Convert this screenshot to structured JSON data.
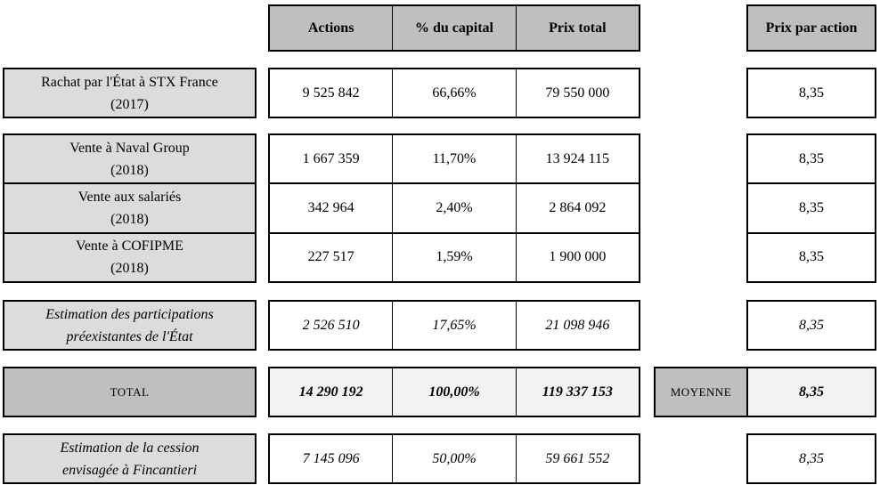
{
  "columns": {
    "actions": "Actions",
    "capital": "% du capital",
    "prix_total": "Prix total",
    "prix_par_action": "Prix par action"
  },
  "rows": [
    {
      "label1": "Rachat par l'État à STX France",
      "label2": "(2017)",
      "actions": "9 525 842",
      "capital": "66,66%",
      "prix_total": "79 550 000",
      "prix_par_action": "8,35"
    },
    {
      "label1": "Vente à Naval Group",
      "label2": "(2018)",
      "actions": "1 667 359",
      "capital": "11,70%",
      "prix_total": "13 924 115",
      "prix_par_action": "8,35"
    },
    {
      "label1": "Vente aux salariés",
      "label2": "(2018)",
      "actions": "342 964",
      "capital": "2,40%",
      "prix_total": "2 864 092",
      "prix_par_action": "8,35"
    },
    {
      "label1": "Vente à COFIPME",
      "label2": "(2018)",
      "actions": "227 517",
      "capital": "1,59%",
      "prix_total": "1 900 000",
      "prix_par_action": "8,35"
    },
    {
      "label1": "Estimation des participations",
      "label2": "préexistantes de l'État",
      "actions": "2 526 510",
      "capital": "17,65%",
      "prix_total": "21 098 946",
      "prix_par_action": "8,35"
    },
    {
      "label1": "Estimation de la cession",
      "label2": "envisagée à Fincantieri",
      "actions": "7 145 096",
      "capital": "50,00%",
      "prix_total": "59 661 552",
      "prix_par_action": "8,35"
    }
  ],
  "total": {
    "label": "TOTAL",
    "actions": "14 290 192",
    "capital": "100,00%",
    "prix_total": "119 337 153",
    "moyenne_label": "MOYENNE",
    "prix_par_action": "8,35"
  },
  "colors": {
    "header_bg": "#bfbfbf",
    "label_bg": "#dcdcdc",
    "total_row_bg": "#f2f2f2",
    "border": "#000000"
  },
  "chart_data": {
    "type": "table",
    "columns": [
      "",
      "Actions",
      "% du capital",
      "Prix total",
      "Prix par action"
    ],
    "rows": [
      [
        "Rachat par l'État à STX France (2017)",
        "9 525 842",
        "66,66%",
        "79 550 000",
        "8,35"
      ],
      [
        "Vente à Naval Group (2018)",
        "1 667 359",
        "11,70%",
        "13 924 115",
        "8,35"
      ],
      [
        "Vente aux salariés (2018)",
        "342 964",
        "2,40%",
        "2 864 092",
        "8,35"
      ],
      [
        "Vente à COFIPME (2018)",
        "227 517",
        "1,59%",
        "1 900 000",
        "8,35"
      ],
      [
        "Estimation des participations préexistantes de l'État",
        "2 526 510",
        "17,65%",
        "21 098 946",
        "8,35"
      ],
      [
        "TOTAL",
        "14 290 192",
        "100,00%",
        "119 337 153",
        "MOYENNE 8,35"
      ],
      [
        "Estimation de la cession envisagée à Fincantieri",
        "7 145 096",
        "50,00%",
        "59 661 552",
        "8,35"
      ]
    ]
  }
}
